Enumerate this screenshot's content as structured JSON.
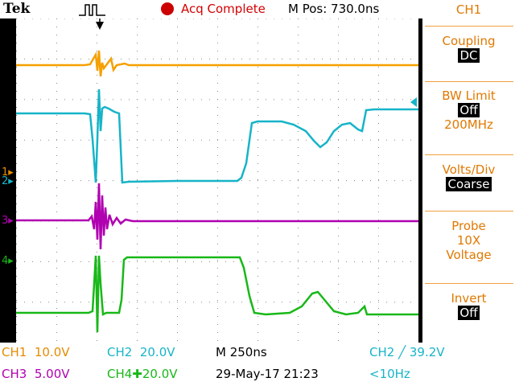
{
  "header": {
    "brand": "Tek",
    "acquisition_status": "Acq Complete",
    "horizontal_position": "M Pos: 730.0ns"
  },
  "menu": {
    "channel": "CH1",
    "coupling_label": "Coupling",
    "coupling_value": "DC",
    "bw_limit_label": "BW Limit",
    "bw_limit_value": "Off",
    "bw_limit_freq": "200MHz",
    "volts_div_label": "Volts/Div",
    "volts_div_value": "Coarse",
    "probe_label": "Probe",
    "probe_atten": "10X",
    "probe_type": "Voltage",
    "invert_label": "Invert",
    "invert_value": "Off"
  },
  "channel_markers": {
    "ch1": "1",
    "ch2": "2",
    "ch3": "3",
    "ch4": "4"
  },
  "status": {
    "ch1_scale": "CH1  10.0V",
    "ch2_scale": "CH2  20.0V",
    "timebase": "M 250ns",
    "trigger": "CH2 ╱ 39.2V",
    "ch3_scale": "CH3  5.00V",
    "ch4_scale": "CH4",
    "ch4_bw_icon_value": "20.0V",
    "datetime": "29-May-17 21:23",
    "trigger_freq": "<10Hz"
  },
  "colors": {
    "ch1": "#f5a000",
    "ch2": "#16b4c8",
    "ch3": "#b000b0",
    "ch4": "#18b818",
    "menu_text": "#e07800"
  }
}
